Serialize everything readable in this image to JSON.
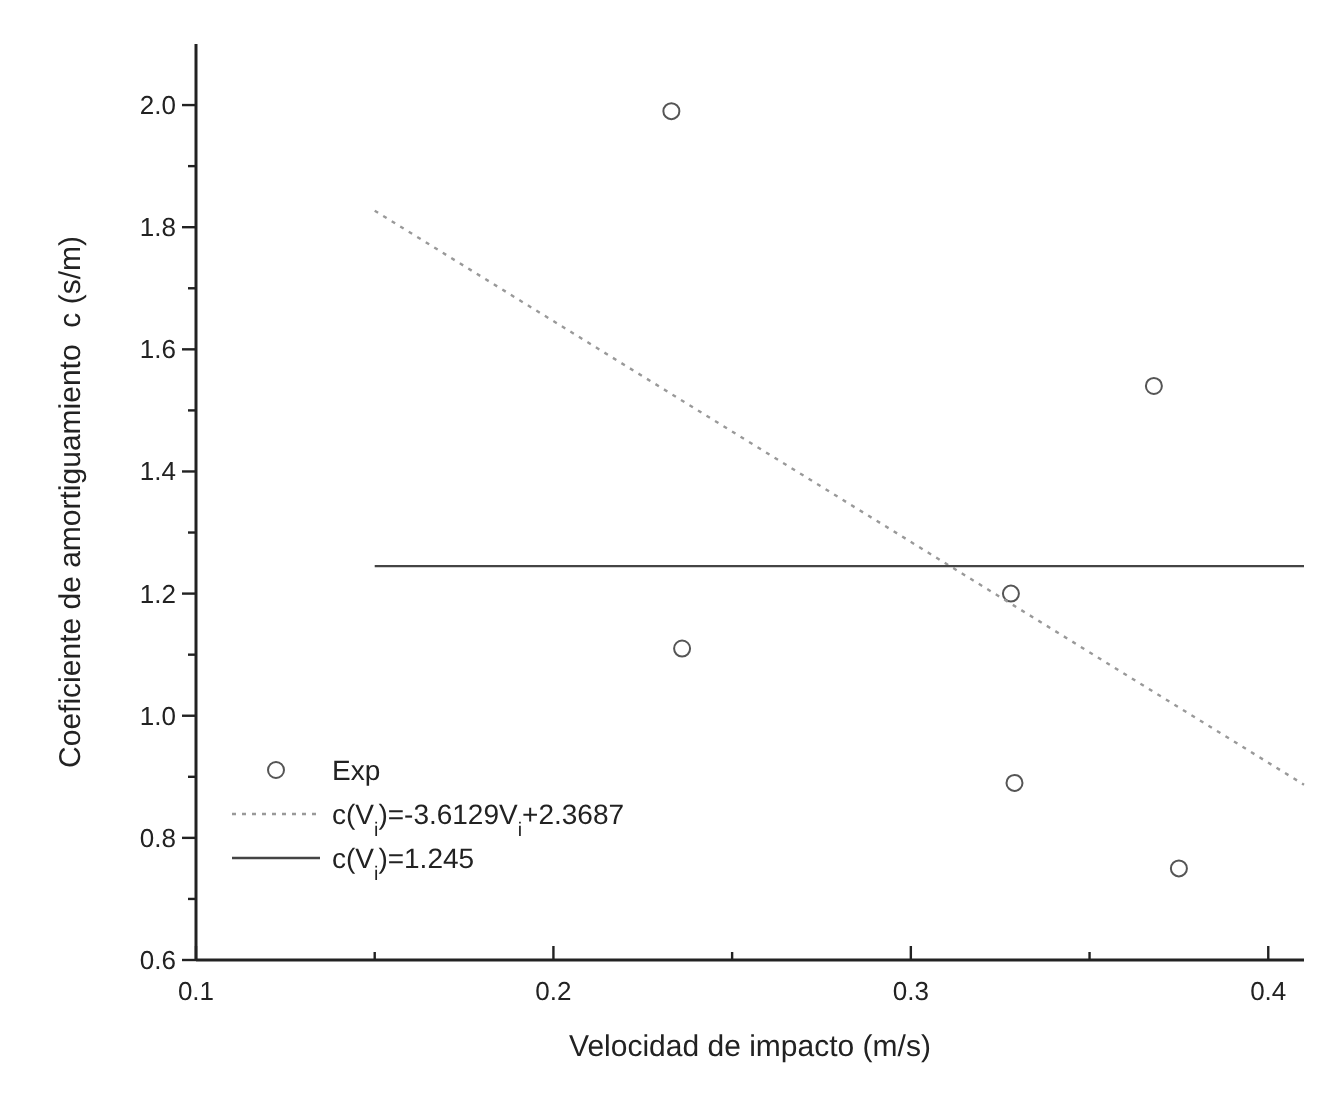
{
  "chart_data": {
    "type": "scatter",
    "xlabel": "Velocidad de impacto (m/s)",
    "ylabel": "Coeficiente de amortiguamiento  c (s/m)",
    "xlim": [
      0.1,
      0.41
    ],
    "ylim": [
      0.6,
      2.1
    ],
    "xticks": [
      0.1,
      {
        "value": 0.15,
        "label": null
      },
      0.2,
      {
        "value": 0.25,
        "label": null
      },
      0.3,
      {
        "value": 0.35,
        "label": null
      },
      0.4
    ],
    "yticks": [
      0.6,
      {
        "value": 0.7,
        "label": null
      },
      0.8,
      {
        "value": 0.9,
        "label": null
      },
      {
        "value": 1,
        "label": "1.0"
      },
      {
        "value": 1.1,
        "label": null
      },
      1.2,
      {
        "value": 1.3,
        "label": null
      },
      1.4,
      {
        "value": 1.5,
        "label": null
      },
      1.6,
      {
        "value": 1.7,
        "label": null
      },
      1.8,
      {
        "value": 1.9,
        "label": null
      },
      {
        "value": 2,
        "label": "2.0"
      }
    ],
    "legend": "bottom left",
    "grid": false,
    "series": [
      {
        "name": "Exp",
        "marker": "circle",
        "color": "#555555",
        "x": [
          0.233,
          0.236,
          0.328,
          0.329,
          0.368,
          0.375
        ],
        "values": [
          1.99,
          1.11,
          1.2,
          0.89,
          1.54,
          0.75
        ]
      },
      {
        "name": "c(V$_{i}$)=-3.6129V$_{i}$+2.3687",
        "type": "line",
        "line_style": "dotted",
        "color": "#999999",
        "x": [
          0.15,
          0.41
        ],
        "values": [
          1.827,
          0.887
        ]
      },
      {
        "name": "c(V$_{i}$)=1.245",
        "type": "line",
        "line_style": "solid",
        "color": "#444444",
        "x": [
          0.15,
          0.41
        ],
        "values": [
          1.245,
          1.245
        ]
      }
    ]
  }
}
